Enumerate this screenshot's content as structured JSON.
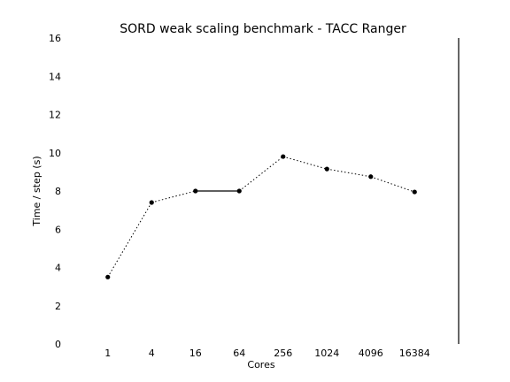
{
  "chart_data": {
    "type": "line",
    "title": "SORD weak scaling benchmark - TACC Ranger",
    "xlabel": "Cores",
    "ylabel": "Time / step (s)",
    "categories": [
      "1",
      "4",
      "16",
      "64",
      "256",
      "1024",
      "4096",
      "16384"
    ],
    "series": [
      {
        "values": [
          3.5,
          7.4,
          8.0,
          8.0,
          9.8,
          9.15,
          8.75,
          7.95
        ],
        "segment_styles": [
          "dotted",
          "dotted",
          "solid",
          "dotted",
          "dotted",
          "dotted",
          "dotted"
        ]
      }
    ],
    "ylim": [
      0,
      16
    ],
    "yticks": [
      "0",
      "2",
      "4",
      "6",
      "8",
      "10",
      "12",
      "14",
      "16"
    ],
    "grid": false,
    "legend": false
  }
}
